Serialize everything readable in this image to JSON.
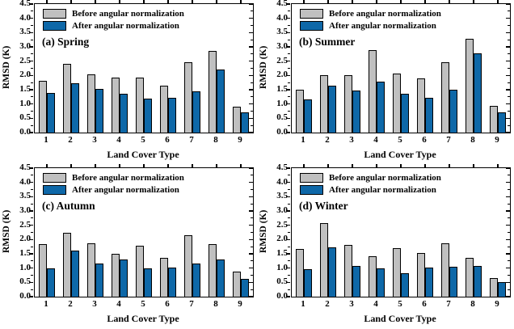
{
  "figure": {
    "background": "#ffffff",
    "ylabel": "RMSD (K)",
    "xlabel": "Land Cover Type",
    "legend": [
      "Before angular normalization",
      "After angular normalization"
    ],
    "colors": {
      "before_fill": "#c0c0c0",
      "after_fill": "#0e68a8",
      "bar_border": "#000000",
      "frame": "#000000",
      "text": "#000000"
    },
    "yticks": [
      "0.0",
      "0.5",
      "1.0",
      "1.5",
      "2.0",
      "2.5",
      "3.0",
      "3.5",
      "4.0",
      "4.5"
    ],
    "xticks": [
      "1",
      "2",
      "3",
      "4",
      "5",
      "6",
      "7",
      "8",
      "9"
    ]
  },
  "chart_data": [
    {
      "type": "bar",
      "panel_label": "(a) Spring",
      "xlabel": "Land Cover Type",
      "ylabel": "RMSD (K)",
      "ylim": [
        0,
        4.5
      ],
      "ytick_step": 0.5,
      "grid": false,
      "legend_position": "top-left",
      "categories": [
        "1",
        "2",
        "3",
        "4",
        "5",
        "6",
        "7",
        "8",
        "9"
      ],
      "series": [
        {
          "name": "Before angular normalization",
          "color": "#c0c0c0",
          "values": [
            1.8,
            2.4,
            2.05,
            1.93,
            1.92,
            1.63,
            2.45,
            2.85,
            0.92
          ]
        },
        {
          "name": "After angular normalization",
          "color": "#0e68a8",
          "values": [
            1.38,
            1.72,
            1.52,
            1.35,
            1.2,
            1.21,
            1.45,
            2.2,
            0.7
          ]
        }
      ]
    },
    {
      "type": "bar",
      "panel_label": "(b) Summer",
      "xlabel": "Land Cover Type",
      "ylabel": "RMSD (K)",
      "ylim": [
        0,
        4.5
      ],
      "ytick_step": 0.5,
      "grid": false,
      "legend_position": "top-left",
      "categories": [
        "1",
        "2",
        "3",
        "4",
        "5",
        "6",
        "7",
        "8",
        "9"
      ],
      "series": [
        {
          "name": "Before angular normalization",
          "color": "#c0c0c0",
          "values": [
            1.51,
            2.0,
            2.02,
            2.9,
            2.07,
            1.9,
            2.45,
            3.28,
            0.93
          ]
        },
        {
          "name": "After angular normalization",
          "color": "#0e68a8",
          "values": [
            1.17,
            1.63,
            1.46,
            1.79,
            1.36,
            1.22,
            1.51,
            2.78,
            0.7
          ]
        }
      ]
    },
    {
      "type": "bar",
      "panel_label": "(c) Autumn",
      "xlabel": "Land Cover Type",
      "ylabel": "RMSD (K)",
      "ylim": [
        0,
        4.5
      ],
      "ytick_step": 0.5,
      "grid": false,
      "legend_position": "top-left",
      "categories": [
        "1",
        "2",
        "3",
        "4",
        "5",
        "6",
        "7",
        "8",
        "9"
      ],
      "series": [
        {
          "name": "Before angular normalization",
          "color": "#c0c0c0",
          "values": [
            1.83,
            2.23,
            1.86,
            1.5,
            1.78,
            1.36,
            2.16,
            1.84,
            0.88
          ]
        },
        {
          "name": "After angular normalization",
          "color": "#0e68a8",
          "values": [
            0.99,
            1.6,
            1.16,
            1.3,
            1.0,
            1.01,
            1.15,
            1.31,
            0.63
          ]
        }
      ]
    },
    {
      "type": "bar",
      "panel_label": "(d) Winter",
      "xlabel": "Land Cover Type",
      "ylabel": "RMSD (K)",
      "ylim": [
        0,
        4.5
      ],
      "ytick_step": 0.5,
      "grid": false,
      "legend_position": "top-left",
      "categories": [
        "1",
        "2",
        "3",
        "4",
        "5",
        "6",
        "7",
        "8",
        "9"
      ],
      "series": [
        {
          "name": "Before angular normalization",
          "color": "#c0c0c0",
          "values": [
            1.66,
            2.59,
            1.81,
            1.41,
            1.71,
            1.52,
            1.87,
            1.35,
            0.65
          ]
        },
        {
          "name": "After angular normalization",
          "color": "#0e68a8",
          "values": [
            0.95,
            1.74,
            1.07,
            1.0,
            0.82,
            1.01,
            1.05,
            1.07,
            0.5
          ]
        }
      ]
    }
  ]
}
